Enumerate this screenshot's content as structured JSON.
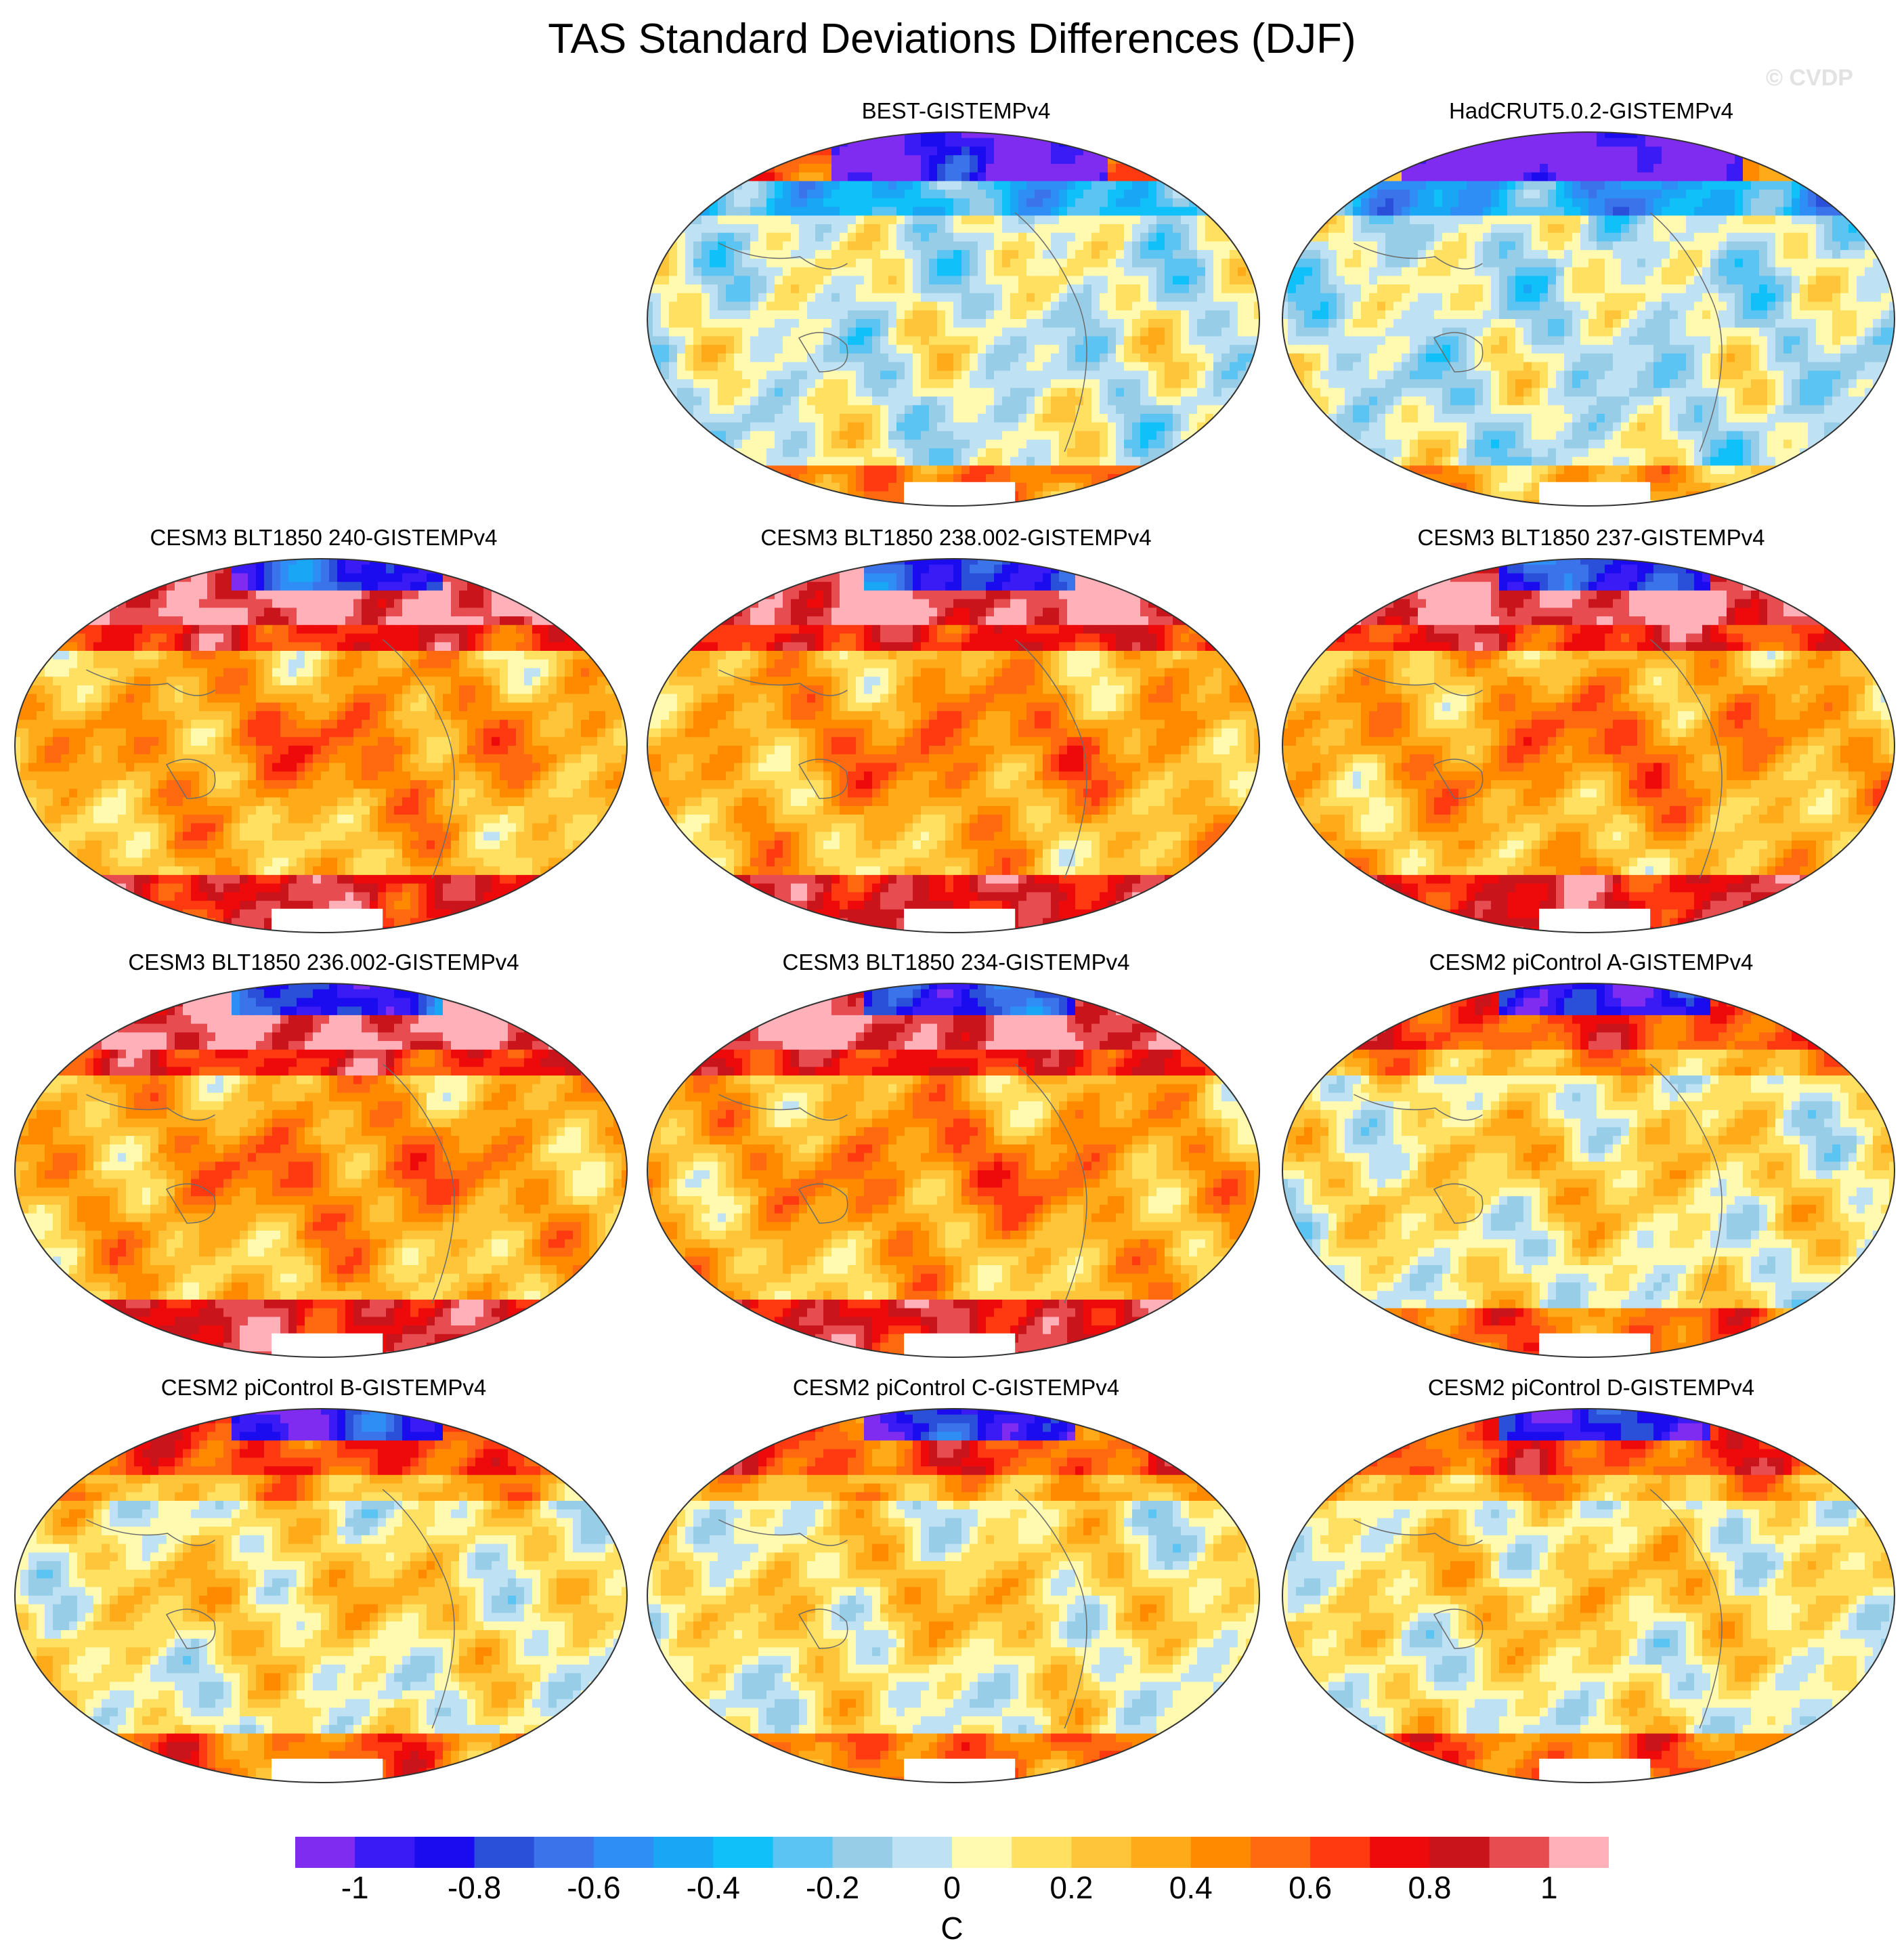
{
  "title": "TAS Standard Deviations Differences (DJF)",
  "watermark": "© CVDP",
  "chart_data": {
    "type": "heatmap",
    "title": "TAS Standard Deviations Differences (DJF)",
    "projection": "Robinson global maps, Pacific-centered",
    "grid": "3 columns x 4 rows, top-left cell empty",
    "panels": [
      {
        "title": "BEST-GISTEMPv4",
        "row": 0,
        "col": 1,
        "pattern": "obs"
      },
      {
        "title": "HadCRUT5.0.2-GISTEMPv4",
        "row": 0,
        "col": 2,
        "pattern": "obs2"
      },
      {
        "title": "CESM3 BLT1850 240-GISTEMPv4",
        "row": 1,
        "col": 0,
        "pattern": "cesm3"
      },
      {
        "title": "CESM3 BLT1850 238.002-GISTEMPv4",
        "row": 1,
        "col": 1,
        "pattern": "cesm3"
      },
      {
        "title": "CESM3 BLT1850 237-GISTEMPv4",
        "row": 1,
        "col": 2,
        "pattern": "cesm3"
      },
      {
        "title": "CESM3 BLT1850 236.002-GISTEMPv4",
        "row": 2,
        "col": 0,
        "pattern": "cesm3"
      },
      {
        "title": "CESM3 BLT1850 234-GISTEMPv4",
        "row": 2,
        "col": 1,
        "pattern": "cesm3"
      },
      {
        "title": "CESM2 piControl A-GISTEMPv4",
        "row": 2,
        "col": 2,
        "pattern": "cesm2"
      },
      {
        "title": "CESM2 piControl B-GISTEMPv4",
        "row": 3,
        "col": 0,
        "pattern": "cesm2"
      },
      {
        "title": "CESM2 piControl C-GISTEMPv4",
        "row": 3,
        "col": 1,
        "pattern": "cesm2"
      },
      {
        "title": "CESM2 piControl D-GISTEMPv4",
        "row": 3,
        "col": 2,
        "pattern": "cesm2"
      }
    ],
    "colorbar": {
      "colors": [
        "#7f2cf0",
        "#3a1af5",
        "#1b0cf0",
        "#2a4fd8",
        "#3a73ea",
        "#2e8ef5",
        "#18a6f5",
        "#10c0f8",
        "#5cc4f2",
        "#98cde8",
        "#bee1f3",
        "#fffab0",
        "#ffe060",
        "#ffc53a",
        "#ffaa18",
        "#ff8a00",
        "#ff6a10",
        "#ff3a10",
        "#ee0a0a",
        "#c8141a",
        "#e64c50",
        "#ffb0b8"
      ],
      "ticks": [
        "-1",
        "-0.8",
        "-0.6",
        "-0.4",
        "-0.2",
        "0",
        "0.2",
        "0.4",
        "0.6",
        "0.8",
        "1"
      ],
      "unit": "C",
      "min": -1.1,
      "max": 1.1,
      "step": 0.1
    }
  }
}
